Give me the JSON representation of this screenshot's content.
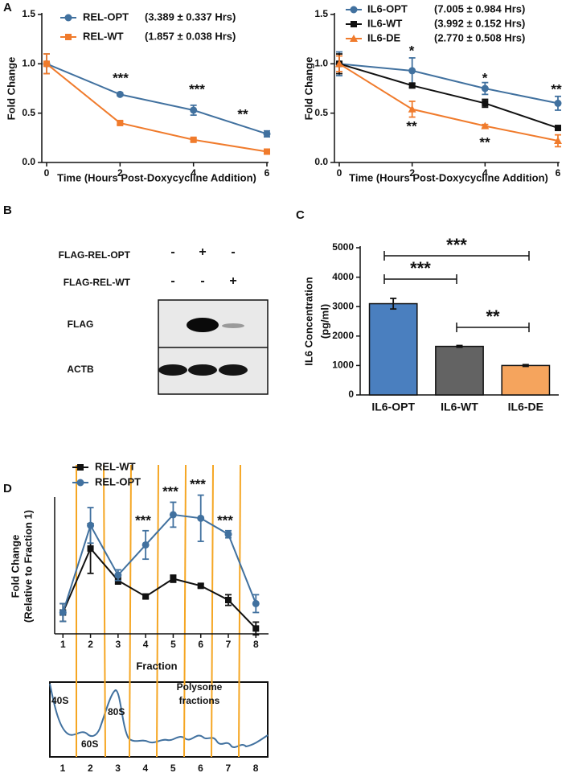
{
  "panel_labels": [
    "A",
    "B",
    "C",
    "D"
  ],
  "chart_data": [
    {
      "type": "line",
      "xlabel": "Time (Hours Post-Doxycycline Addition)",
      "ylabel": "Fold Change",
      "x": [
        0,
        2,
        4,
        6
      ],
      "xlim": [
        0,
        6
      ],
      "xticks": [
        0,
        2,
        4,
        6
      ],
      "ylim": [
        0,
        1.5
      ],
      "yticks": [
        {
          "value": 0,
          "label": "0.0"
        },
        {
          "value": 0.5,
          "label": "0.5"
        },
        {
          "value": 1,
          "label": "1.0"
        },
        {
          "value": 1.5,
          "label": "1.5"
        }
      ],
      "series": [
        {
          "name": "REL-OPT",
          "note": "(3.389 ± 0.337 Hrs)",
          "color": "#41719f",
          "marker": "circle",
          "values": [
            1.0,
            0.69,
            0.53,
            0.29
          ],
          "errors": [
            0.1,
            0.015,
            0.05,
            0.03
          ]
        },
        {
          "name": "REL-WT",
          "note": "(1.857 ± 0.038 Hrs)",
          "color": "#f07b2c",
          "marker": "square",
          "values": [
            1.0,
            0.4,
            0.23,
            0.11
          ],
          "errors": [
            0.1,
            0.015,
            0.015,
            0.015
          ]
        }
      ],
      "annotations": [
        "***",
        "***",
        "**"
      ]
    },
    {
      "type": "line",
      "xlabel": "Time (Hours Post-Doxycycline Addition)",
      "ylabel": "Fold Change",
      "x": [
        0,
        2,
        4,
        6
      ],
      "xlim": [
        0,
        6
      ],
      "xticks": [
        0,
        2,
        4,
        6
      ],
      "ylim": [
        0,
        1.5
      ],
      "yticks": [
        {
          "value": 0,
          "label": "0.0"
        },
        {
          "value": 0.5,
          "label": "0.5"
        },
        {
          "value": 1,
          "label": "1.0"
        },
        {
          "value": 1.5,
          "label": "1.5"
        }
      ],
      "series": [
        {
          "name": "IL6-OPT",
          "note": "(7.005 ± 0.984 Hrs)",
          "color": "#41719f",
          "marker": "circle",
          "values": [
            1.0,
            0.93,
            0.75,
            0.6
          ],
          "errors": [
            0.12,
            0.13,
            0.06,
            0.07
          ]
        },
        {
          "name": "IL6-WT",
          "note": "(3.992 ± 0.152 Hrs)",
          "color": "#111111",
          "marker": "square",
          "values": [
            1.0,
            0.78,
            0.6,
            0.35
          ],
          "errors": [
            0.1,
            0.02,
            0.04,
            0.015
          ]
        },
        {
          "name": "IL6-DE",
          "note": "(2.770 ± 0.508 Hrs)",
          "color": "#f07b2c",
          "marker": "triangle",
          "values": [
            1.0,
            0.54,
            0.37,
            0.22
          ],
          "errors": [
            0.08,
            0.08,
            0.015,
            0.06
          ]
        }
      ],
      "annotations": [
        "*",
        "*",
        "**",
        "**",
        "**"
      ]
    },
    {
      "type": "bar",
      "ylabel": [
        "IL6 Concentration",
        "(pg/ml)"
      ],
      "categories": [
        "IL6-OPT",
        "IL6-WT",
        "IL6-DE"
      ],
      "values": [
        3100,
        1650,
        1000
      ],
      "errors": [
        180,
        30,
        30
      ],
      "colors": [
        "#4a7fbf",
        "#636363",
        "#f5a45d"
      ],
      "ylim": [
        0,
        5000
      ],
      "yticks": [
        0,
        1000,
        2000,
        3000,
        4000,
        5000
      ],
      "annotations": [
        "***",
        "***",
        "**"
      ]
    },
    {
      "type": "line",
      "xlabel": "Fraction",
      "ylabel": [
        "Fold Change",
        "(Relative to Fraction 1)"
      ],
      "x": [
        1,
        2,
        3,
        4,
        5,
        6,
        7,
        8
      ],
      "xlim": [
        0.7,
        8.4
      ],
      "xticks": [
        1,
        2,
        3,
        4,
        5,
        6,
        7,
        8
      ],
      "ylim": [
        0.4,
        4.2
      ],
      "yticks": [],
      "series": [
        {
          "name": "REL-WT",
          "color": "#111111",
          "marker": "square",
          "values": [
            1.0,
            2.8,
            1.9,
            1.45,
            1.95,
            1.75,
            1.35,
            0.55
          ],
          "errors": [
            0.25,
            0.7,
            0.1,
            0.05,
            0.1,
            0.05,
            0.15,
            0.18
          ]
        },
        {
          "name": "REL-OPT",
          "color": "#41719f",
          "marker": "circle",
          "values": [
            1.0,
            3.45,
            2.05,
            2.9,
            3.75,
            3.65,
            3.2,
            1.25
          ],
          "errors": [
            0.25,
            0.5,
            0.15,
            0.4,
            0.35,
            0.65,
            0.1,
            0.25
          ]
        }
      ],
      "annotations": [
        "***",
        "***",
        "***",
        "***"
      ]
    }
  ],
  "blot": {
    "rows": [
      {
        "label": "FLAG-REL-OPT",
        "signs": [
          "-",
          "+",
          "-"
        ]
      },
      {
        "label": "FLAG-REL-WT",
        "signs": [
          "-",
          "-",
          "+"
        ]
      }
    ],
    "bands": [
      "FLAG",
      "ACTB"
    ]
  },
  "profile": {
    "peaks": [
      "40S",
      "60S",
      "80S"
    ],
    "region": [
      "Polysome",
      "fractions"
    ],
    "fractions": [
      "1",
      "2",
      "3",
      "4",
      "5",
      "6",
      "7",
      "8"
    ]
  }
}
